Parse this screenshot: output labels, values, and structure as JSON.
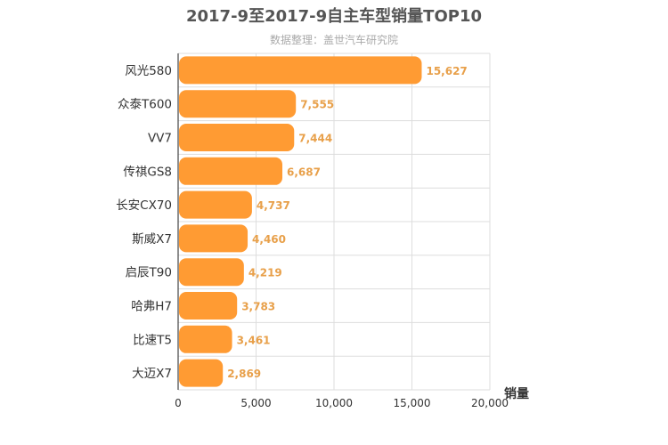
{
  "chart_data": {
    "type": "bar",
    "orientation": "horizontal",
    "title": "2017-9至2017-9自主车型销量TOP10",
    "subtitle": "数据整理：盖世汽车研究院",
    "xlabel": "销量",
    "ylabel": "",
    "categories": [
      "风光580",
      "众泰T600",
      "VV7",
      "传祺GS8",
      "长安CX70",
      "斯威X7",
      "启辰T90",
      "哈弗H7",
      "比速T5",
      "大迈X7"
    ],
    "values": [
      15627,
      7555,
      7444,
      6687,
      4737,
      4460,
      4219,
      3783,
      3461,
      2869
    ],
    "value_labels": [
      "15,627",
      "7,555",
      "7,444",
      "6,687",
      "4,737",
      "4,460",
      "4,219",
      "3,783",
      "3,461",
      "2,869"
    ],
    "xlim": [
      0,
      20000
    ],
    "ticks": [
      0,
      5000,
      10000,
      15000,
      20000
    ],
    "tick_labels": [
      "0",
      "5,000",
      "10,000",
      "15,000",
      "20,000"
    ],
    "grid": true,
    "legend": "none",
    "bar_color": "#ff9b33",
    "label_color": "#e8a04a"
  }
}
